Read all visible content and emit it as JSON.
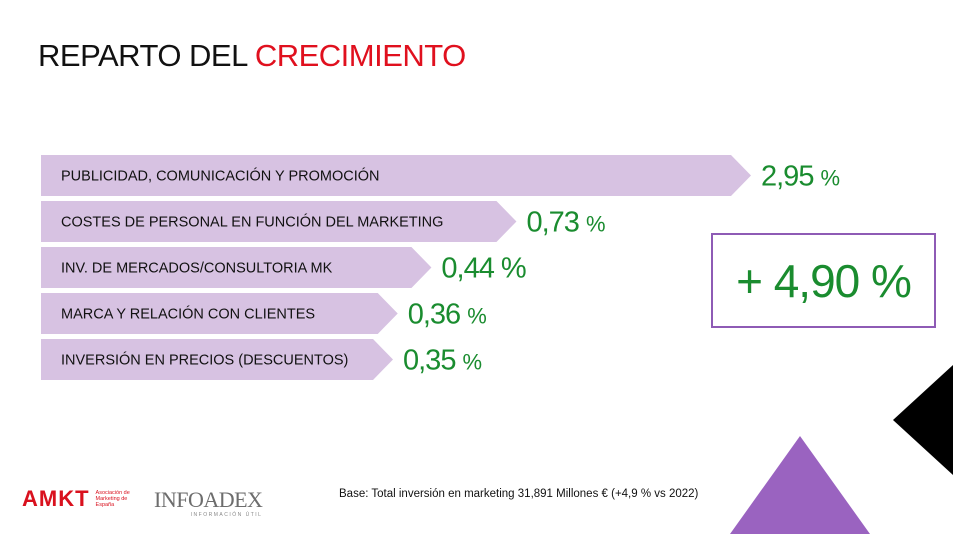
{
  "title": {
    "part1": "REPARTO DEL ",
    "part2": "CRECIMIENTO"
  },
  "chart_data": {
    "type": "bar",
    "orientation": "horizontal",
    "categories": [
      "PUBLICIDAD, COMUNICACIÓN Y PROMOCIÓN",
      "COSTES DE PERSONAL EN FUNCIÓN DEL MARKETING",
      "INV. DE MERCADOS/CONSULTORIA MK",
      "MARCA Y RELACIÓN CON CLIENTES",
      "INVERSIÓN EN PRECIOS (DESCUENTOS)"
    ],
    "values": [
      2.95,
      0.73,
      0.44,
      0.36,
      0.35
    ],
    "value_labels": [
      {
        "num": "2,95",
        "unit": "%"
      },
      {
        "num": "0,73",
        "unit": "%"
      },
      {
        "num": "0,44",
        "unit": "%"
      },
      {
        "num": "0,36",
        "unit": "%"
      },
      {
        "num": "0,35",
        "unit": "%"
      }
    ],
    "bar_color": "#d7c2e2",
    "label_color": "#1a8c2f"
  },
  "total": "+ 4,90 %",
  "base_note": "Base: Total inversión en marketing 31,891 Millones € (+4,9 % vs 2022)",
  "logos": {
    "amkt": {
      "mark": "AMKT",
      "sub": "Asociación de Marketing de España"
    },
    "infoadex": {
      "mark": "INFOADEX",
      "sub": "INFORMACIÓN ÚTIL"
    }
  },
  "colors": {
    "accent_red": "#e0101e",
    "purple": "#8e5bb5",
    "green": "#1a8c2f"
  }
}
